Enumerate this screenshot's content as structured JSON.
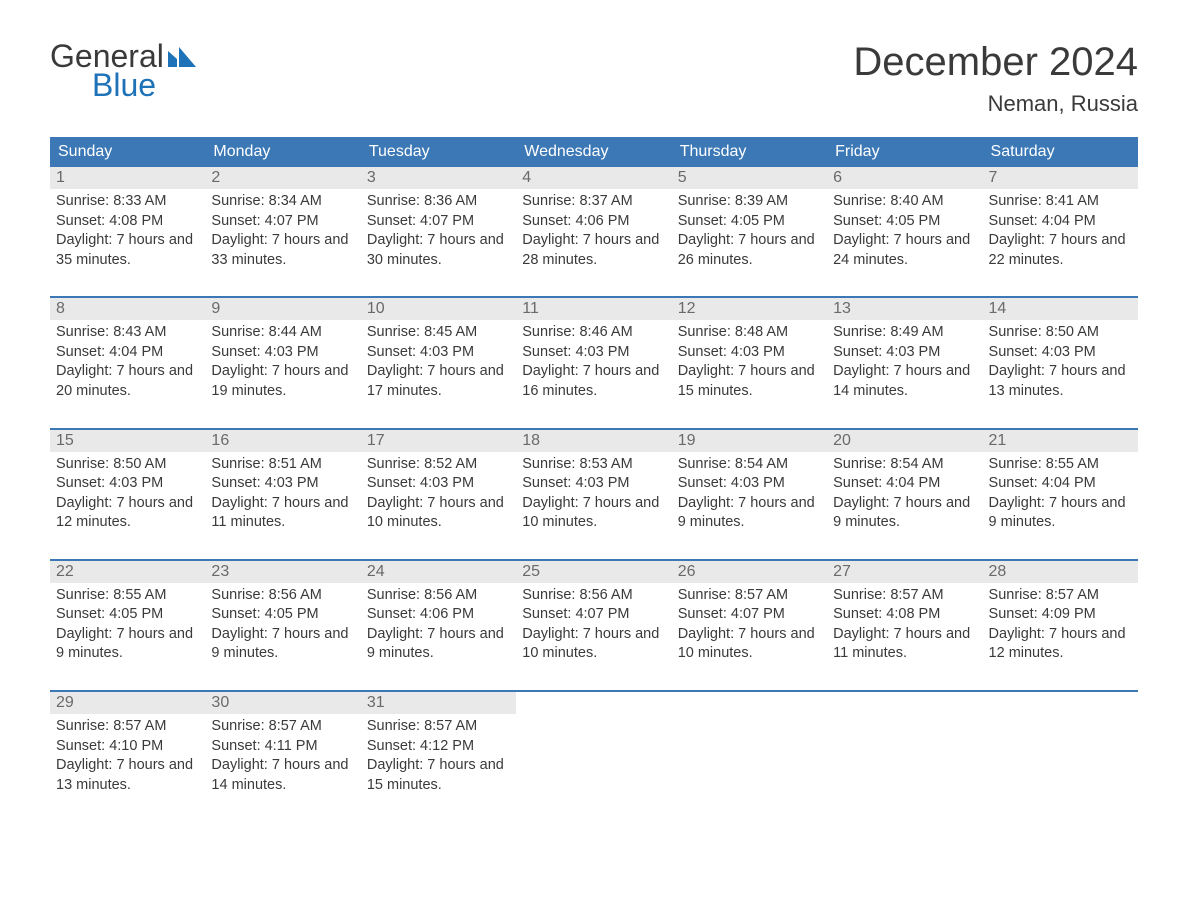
{
  "logo": {
    "line1": "General",
    "line2": "Blue"
  },
  "title": "December 2024",
  "location": "Neman, Russia",
  "colors": {
    "accent": "#3b78b5",
    "header_bg": "#3b78b5",
    "header_text": "#ffffff",
    "daynum_bg": "#e9e9e9",
    "daynum_text": "#6a6a6a",
    "body_text": "#3a3a3a",
    "logo_blue": "#1d72b8"
  },
  "day_headers": [
    "Sunday",
    "Monday",
    "Tuesday",
    "Wednesday",
    "Thursday",
    "Friday",
    "Saturday"
  ],
  "weeks": [
    [
      {
        "n": "1",
        "sunrise": "Sunrise: 8:33 AM",
        "sunset": "Sunset: 4:08 PM",
        "daylight": "Daylight: 7 hours and 35 minutes."
      },
      {
        "n": "2",
        "sunrise": "Sunrise: 8:34 AM",
        "sunset": "Sunset: 4:07 PM",
        "daylight": "Daylight: 7 hours and 33 minutes."
      },
      {
        "n": "3",
        "sunrise": "Sunrise: 8:36 AM",
        "sunset": "Sunset: 4:07 PM",
        "daylight": "Daylight: 7 hours and 30 minutes."
      },
      {
        "n": "4",
        "sunrise": "Sunrise: 8:37 AM",
        "sunset": "Sunset: 4:06 PM",
        "daylight": "Daylight: 7 hours and 28 minutes."
      },
      {
        "n": "5",
        "sunrise": "Sunrise: 8:39 AM",
        "sunset": "Sunset: 4:05 PM",
        "daylight": "Daylight: 7 hours and 26 minutes."
      },
      {
        "n": "6",
        "sunrise": "Sunrise: 8:40 AM",
        "sunset": "Sunset: 4:05 PM",
        "daylight": "Daylight: 7 hours and 24 minutes."
      },
      {
        "n": "7",
        "sunrise": "Sunrise: 8:41 AM",
        "sunset": "Sunset: 4:04 PM",
        "daylight": "Daylight: 7 hours and 22 minutes."
      }
    ],
    [
      {
        "n": "8",
        "sunrise": "Sunrise: 8:43 AM",
        "sunset": "Sunset: 4:04 PM",
        "daylight": "Daylight: 7 hours and 20 minutes."
      },
      {
        "n": "9",
        "sunrise": "Sunrise: 8:44 AM",
        "sunset": "Sunset: 4:03 PM",
        "daylight": "Daylight: 7 hours and 19 minutes."
      },
      {
        "n": "10",
        "sunrise": "Sunrise: 8:45 AM",
        "sunset": "Sunset: 4:03 PM",
        "daylight": "Daylight: 7 hours and 17 minutes."
      },
      {
        "n": "11",
        "sunrise": "Sunrise: 8:46 AM",
        "sunset": "Sunset: 4:03 PM",
        "daylight": "Daylight: 7 hours and 16 minutes."
      },
      {
        "n": "12",
        "sunrise": "Sunrise: 8:48 AM",
        "sunset": "Sunset: 4:03 PM",
        "daylight": "Daylight: 7 hours and 15 minutes."
      },
      {
        "n": "13",
        "sunrise": "Sunrise: 8:49 AM",
        "sunset": "Sunset: 4:03 PM",
        "daylight": "Daylight: 7 hours and 14 minutes."
      },
      {
        "n": "14",
        "sunrise": "Sunrise: 8:50 AM",
        "sunset": "Sunset: 4:03 PM",
        "daylight": "Daylight: 7 hours and 13 minutes."
      }
    ],
    [
      {
        "n": "15",
        "sunrise": "Sunrise: 8:50 AM",
        "sunset": "Sunset: 4:03 PM",
        "daylight": "Daylight: 7 hours and 12 minutes."
      },
      {
        "n": "16",
        "sunrise": "Sunrise: 8:51 AM",
        "sunset": "Sunset: 4:03 PM",
        "daylight": "Daylight: 7 hours and 11 minutes."
      },
      {
        "n": "17",
        "sunrise": "Sunrise: 8:52 AM",
        "sunset": "Sunset: 4:03 PM",
        "daylight": "Daylight: 7 hours and 10 minutes."
      },
      {
        "n": "18",
        "sunrise": "Sunrise: 8:53 AM",
        "sunset": "Sunset: 4:03 PM",
        "daylight": "Daylight: 7 hours and 10 minutes."
      },
      {
        "n": "19",
        "sunrise": "Sunrise: 8:54 AM",
        "sunset": "Sunset: 4:03 PM",
        "daylight": "Daylight: 7 hours and 9 minutes."
      },
      {
        "n": "20",
        "sunrise": "Sunrise: 8:54 AM",
        "sunset": "Sunset: 4:04 PM",
        "daylight": "Daylight: 7 hours and 9 minutes."
      },
      {
        "n": "21",
        "sunrise": "Sunrise: 8:55 AM",
        "sunset": "Sunset: 4:04 PM",
        "daylight": "Daylight: 7 hours and 9 minutes."
      }
    ],
    [
      {
        "n": "22",
        "sunrise": "Sunrise: 8:55 AM",
        "sunset": "Sunset: 4:05 PM",
        "daylight": "Daylight: 7 hours and 9 minutes."
      },
      {
        "n": "23",
        "sunrise": "Sunrise: 8:56 AM",
        "sunset": "Sunset: 4:05 PM",
        "daylight": "Daylight: 7 hours and 9 minutes."
      },
      {
        "n": "24",
        "sunrise": "Sunrise: 8:56 AM",
        "sunset": "Sunset: 4:06 PM",
        "daylight": "Daylight: 7 hours and 9 minutes."
      },
      {
        "n": "25",
        "sunrise": "Sunrise: 8:56 AM",
        "sunset": "Sunset: 4:07 PM",
        "daylight": "Daylight: 7 hours and 10 minutes."
      },
      {
        "n": "26",
        "sunrise": "Sunrise: 8:57 AM",
        "sunset": "Sunset: 4:07 PM",
        "daylight": "Daylight: 7 hours and 10 minutes."
      },
      {
        "n": "27",
        "sunrise": "Sunrise: 8:57 AM",
        "sunset": "Sunset: 4:08 PM",
        "daylight": "Daylight: 7 hours and 11 minutes."
      },
      {
        "n": "28",
        "sunrise": "Sunrise: 8:57 AM",
        "sunset": "Sunset: 4:09 PM",
        "daylight": "Daylight: 7 hours and 12 minutes."
      }
    ],
    [
      {
        "n": "29",
        "sunrise": "Sunrise: 8:57 AM",
        "sunset": "Sunset: 4:10 PM",
        "daylight": "Daylight: 7 hours and 13 minutes."
      },
      {
        "n": "30",
        "sunrise": "Sunrise: 8:57 AM",
        "sunset": "Sunset: 4:11 PM",
        "daylight": "Daylight: 7 hours and 14 minutes."
      },
      {
        "n": "31",
        "sunrise": "Sunrise: 8:57 AM",
        "sunset": "Sunset: 4:12 PM",
        "daylight": "Daylight: 7 hours and 15 minutes."
      },
      {
        "empty": true
      },
      {
        "empty": true
      },
      {
        "empty": true
      },
      {
        "empty": true
      }
    ]
  ]
}
